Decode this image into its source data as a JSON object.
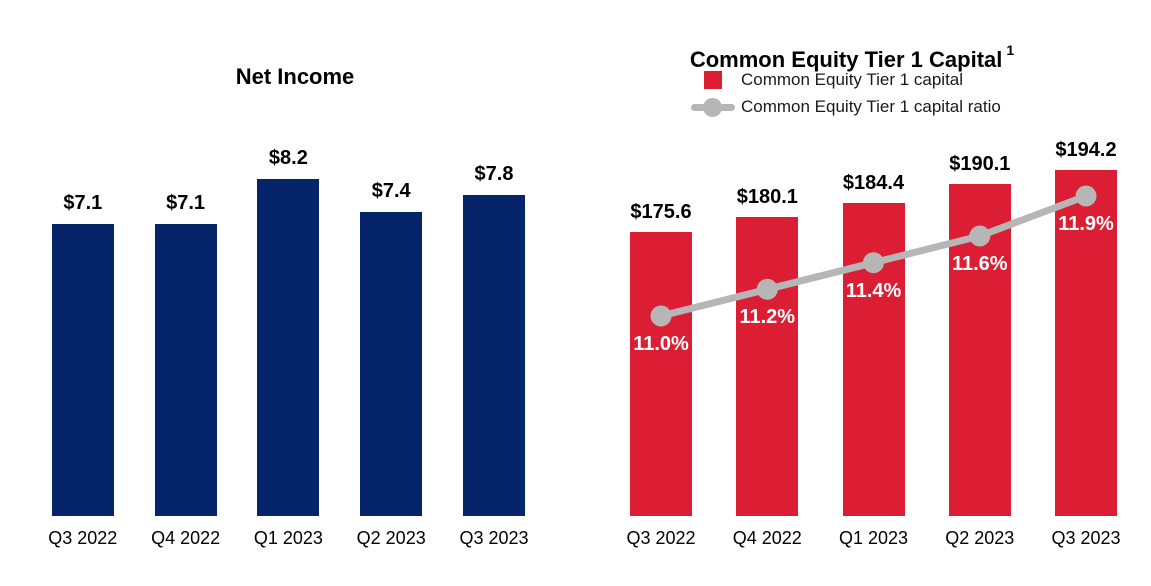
{
  "chart_data": [
    {
      "type": "bar",
      "title": "Net Income",
      "categories": [
        "Q3 2022",
        "Q4 2022",
        "Q1 2023",
        "Q2 2023",
        "Q3 2023"
      ],
      "values": [
        7.1,
        7.1,
        8.2,
        7.4,
        7.8
      ],
      "value_labels": [
        "$7.1",
        "$7.1",
        "$8.2",
        "$7.4",
        "$7.8"
      ],
      "bar_color": "#05246a",
      "value_label_color": "#000000",
      "xlabel": "",
      "ylabel": "",
      "ylim": [
        0,
        10
      ],
      "grid": false,
      "legend_position": "none"
    },
    {
      "type": "bar+line",
      "title": "Common Equity Tier 1 Capital",
      "title_superscript": "1",
      "categories": [
        "Q3 2022",
        "Q4 2022",
        "Q1 2023",
        "Q2 2023",
        "Q3 2023"
      ],
      "series": [
        {
          "name": "Common Equity Tier 1 capital",
          "type": "bar",
          "values": [
            175.6,
            180.1,
            184.4,
            190.1,
            194.2
          ],
          "value_labels": [
            "$175.6",
            "$180.1",
            "$184.4",
            "$190.1",
            "$194.2"
          ],
          "color": "#dc1e34",
          "value_label_color": "#000000",
          "ylim": [
            90,
            215
          ]
        },
        {
          "name": "Common Equity Tier 1 capital ratio",
          "type": "line",
          "values": [
            11.0,
            11.2,
            11.4,
            11.6,
            11.9
          ],
          "value_labels": [
            "11.0%",
            "11.2%",
            "11.4%",
            "11.6%",
            "11.9%"
          ],
          "color": "#b5b6b5",
          "value_label_color": "#ffffff",
          "ylim": [
            9.5,
            12.65
          ]
        }
      ],
      "legend": [
        {
          "label": "Common Equity Tier 1 capital",
          "marker": "square",
          "color": "#dc1e34"
        },
        {
          "label": "Common Equity Tier 1 capital ratio",
          "marker": "line-circle",
          "color": "#b5b6b5"
        }
      ],
      "xlabel": "",
      "ylabel": "",
      "grid": false,
      "legend_position": "top"
    }
  ]
}
